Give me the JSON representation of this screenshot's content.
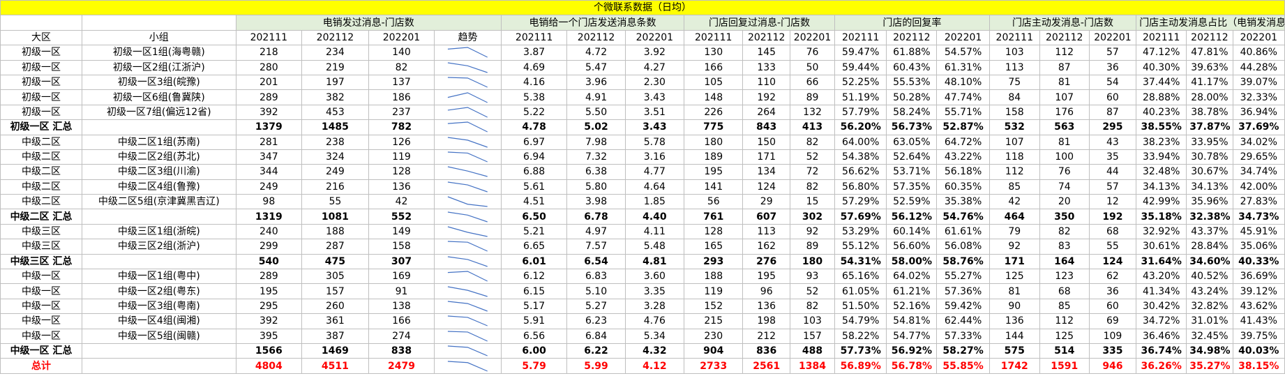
{
  "title": "个微联系数据（日均）",
  "group_headers": {
    "g1": "电销发过消息-门店数",
    "g2": "电销给一个门店发送消息条数",
    "g3": "门店回复过消息-门店数",
    "g4": "门店的回复率",
    "g5": "门店主动发消息-门店数",
    "g6": "门店主动发消息占比（电销发消息）"
  },
  "col_headers": {
    "region": "大区",
    "team": "小组",
    "p1": "202111",
    "p2": "202112",
    "p3": "202201",
    "trend": "趋势"
  },
  "rows": [
    {
      "region": "初级一区",
      "team": "初级一区1组(海粤赣)",
      "s": [
        "218",
        "234",
        "140"
      ],
      "m": [
        "3.87",
        "4.72",
        "3.92"
      ],
      "r": [
        "130",
        "145",
        "76"
      ],
      "rr": [
        "59.47%",
        "61.88%",
        "54.57%"
      ],
      "a": [
        "103",
        "112",
        "57"
      ],
      "ap": [
        "47.12%",
        "47.81%",
        "40.86%"
      ]
    },
    {
      "region": "初级一区",
      "team": "初级一区2组(江浙沪)",
      "s": [
        "280",
        "219",
        "82"
      ],
      "m": [
        "4.69",
        "5.47",
        "4.27"
      ],
      "r": [
        "166",
        "133",
        "50"
      ],
      "rr": [
        "59.44%",
        "60.43%",
        "61.31%"
      ],
      "a": [
        "113",
        "87",
        "36"
      ],
      "ap": [
        "40.30%",
        "39.63%",
        "44.28%"
      ]
    },
    {
      "region": "初级一区",
      "team": "初级一区3组(皖豫)",
      "s": [
        "201",
        "197",
        "137"
      ],
      "m": [
        "4.16",
        "3.96",
        "2.30"
      ],
      "r": [
        "105",
        "110",
        "66"
      ],
      "rr": [
        "52.25%",
        "55.53%",
        "48.10%"
      ],
      "a": [
        "75",
        "81",
        "54"
      ],
      "ap": [
        "37.44%",
        "41.17%",
        "39.07%"
      ]
    },
    {
      "region": "初级一区",
      "team": "初级一区6组(鲁冀陕)",
      "s": [
        "289",
        "382",
        "186"
      ],
      "m": [
        "5.38",
        "4.91",
        "3.43"
      ],
      "r": [
        "148",
        "192",
        "89"
      ],
      "rr": [
        "51.19%",
        "50.28%",
        "47.74%"
      ],
      "a": [
        "84",
        "107",
        "60"
      ],
      "ap": [
        "28.88%",
        "28.00%",
        "32.33%"
      ]
    },
    {
      "region": "初级一区",
      "team": "初级一区7组(偏远12省)",
      "s": [
        "392",
        "453",
        "237"
      ],
      "m": [
        "5.22",
        "5.50",
        "3.51"
      ],
      "r": [
        "226",
        "264",
        "132"
      ],
      "rr": [
        "57.79%",
        "58.24%",
        "55.71%"
      ],
      "a": [
        "158",
        "176",
        "87"
      ],
      "ap": [
        "40.23%",
        "38.78%",
        "36.94%"
      ]
    },
    {
      "type": "subtotal",
      "region": "初级一区 汇总",
      "team": "",
      "s": [
        "1379",
        "1485",
        "782"
      ],
      "m": [
        "4.78",
        "5.02",
        "3.43"
      ],
      "r": [
        "775",
        "843",
        "413"
      ],
      "rr": [
        "56.20%",
        "56.73%",
        "52.87%"
      ],
      "a": [
        "532",
        "563",
        "295"
      ],
      "ap": [
        "38.55%",
        "37.87%",
        "37.69%"
      ]
    },
    {
      "region": "中级二区",
      "team": "中级二区1组(苏南)",
      "s": [
        "281",
        "238",
        "126"
      ],
      "m": [
        "6.97",
        "7.98",
        "5.78"
      ],
      "r": [
        "180",
        "150",
        "82"
      ],
      "rr": [
        "64.00%",
        "63.05%",
        "64.72%"
      ],
      "a": [
        "107",
        "81",
        "43"
      ],
      "ap": [
        "38.23%",
        "33.95%",
        "34.02%"
      ]
    },
    {
      "region": "中级二区",
      "team": "中级二区2组(苏北)",
      "s": [
        "347",
        "324",
        "119"
      ],
      "m": [
        "6.94",
        "7.32",
        "3.16"
      ],
      "r": [
        "189",
        "171",
        "52"
      ],
      "rr": [
        "54.38%",
        "52.64%",
        "43.22%"
      ],
      "a": [
        "118",
        "100",
        "35"
      ],
      "ap": [
        "33.94%",
        "30.78%",
        "29.65%"
      ]
    },
    {
      "region": "中级二区",
      "team": "中级二区3组(川渝)",
      "s": [
        "344",
        "249",
        "128"
      ],
      "m": [
        "6.88",
        "6.38",
        "4.77"
      ],
      "r": [
        "195",
        "134",
        "72"
      ],
      "rr": [
        "56.62%",
        "53.71%",
        "56.18%"
      ],
      "a": [
        "112",
        "76",
        "44"
      ],
      "ap": [
        "32.48%",
        "30.67%",
        "34.74%"
      ]
    },
    {
      "region": "中级二区",
      "team": "中级二区4组(鲁豫)",
      "s": [
        "249",
        "216",
        "136"
      ],
      "m": [
        "5.61",
        "5.80",
        "4.64"
      ],
      "r": [
        "141",
        "124",
        "82"
      ],
      "rr": [
        "56.80%",
        "57.35%",
        "60.35%"
      ],
      "a": [
        "85",
        "74",
        "57"
      ],
      "ap": [
        "34.13%",
        "34.13%",
        "42.00%"
      ]
    },
    {
      "region": "中级二区",
      "team": "中级二区5组(京津冀黑吉辽)",
      "s": [
        "98",
        "55",
        "42"
      ],
      "m": [
        "4.51",
        "3.98",
        "1.85"
      ],
      "r": [
        "56",
        "29",
        "15"
      ],
      "rr": [
        "57.29%",
        "52.59%",
        "35.38%"
      ],
      "a": [
        "42",
        "20",
        "12"
      ],
      "ap": [
        "42.99%",
        "35.96%",
        "27.83%"
      ]
    },
    {
      "type": "subtotal",
      "region": "中级二区 汇总",
      "team": "",
      "s": [
        "1319",
        "1081",
        "552"
      ],
      "m": [
        "6.50",
        "6.78",
        "4.40"
      ],
      "r": [
        "761",
        "607",
        "302"
      ],
      "rr": [
        "57.69%",
        "56.12%",
        "54.76%"
      ],
      "a": [
        "464",
        "350",
        "192"
      ],
      "ap": [
        "35.18%",
        "32.38%",
        "34.73%"
      ]
    },
    {
      "region": "中级三区",
      "team": "中级三区1组(浙皖)",
      "s": [
        "240",
        "188",
        "149"
      ],
      "m": [
        "5.21",
        "4.97",
        "4.11"
      ],
      "r": [
        "128",
        "113",
        "92"
      ],
      "rr": [
        "53.29%",
        "60.14%",
        "61.61%"
      ],
      "a": [
        "79",
        "82",
        "68"
      ],
      "ap": [
        "32.92%",
        "43.37%",
        "45.91%"
      ]
    },
    {
      "region": "中级三区",
      "team": "中级三区2组(浙沪)",
      "s": [
        "299",
        "287",
        "158"
      ],
      "m": [
        "6.65",
        "7.57",
        "5.48"
      ],
      "r": [
        "165",
        "162",
        "89"
      ],
      "rr": [
        "55.12%",
        "56.60%",
        "56.08%"
      ],
      "a": [
        "92",
        "83",
        "55"
      ],
      "ap": [
        "30.61%",
        "28.84%",
        "35.06%"
      ]
    },
    {
      "type": "subtotal",
      "region": "中级三区 汇总",
      "team": "",
      "s": [
        "540",
        "475",
        "307"
      ],
      "m": [
        "6.01",
        "6.54",
        "4.81"
      ],
      "r": [
        "293",
        "276",
        "180"
      ],
      "rr": [
        "54.31%",
        "58.00%",
        "58.76%"
      ],
      "a": [
        "171",
        "164",
        "124"
      ],
      "ap": [
        "31.64%",
        "34.60%",
        "40.33%"
      ]
    },
    {
      "region": "中级一区",
      "team": "中级一区1组(粤中)",
      "s": [
        "289",
        "305",
        "169"
      ],
      "m": [
        "6.12",
        "6.83",
        "3.60"
      ],
      "r": [
        "188",
        "195",
        "93"
      ],
      "rr": [
        "65.16%",
        "64.02%",
        "55.27%"
      ],
      "a": [
        "125",
        "123",
        "62"
      ],
      "ap": [
        "43.20%",
        "40.52%",
        "36.69%"
      ]
    },
    {
      "region": "中级一区",
      "team": "中级一区2组(粤东)",
      "s": [
        "195",
        "157",
        "91"
      ],
      "m": [
        "6.15",
        "5.10",
        "3.35"
      ],
      "r": [
        "119",
        "96",
        "52"
      ],
      "rr": [
        "61.05%",
        "61.21%",
        "57.36%"
      ],
      "a": [
        "81",
        "68",
        "36"
      ],
      "ap": [
        "41.34%",
        "43.24%",
        "39.12%"
      ]
    },
    {
      "region": "中级一区",
      "team": "中级一区3组(粤南)",
      "s": [
        "295",
        "260",
        "138"
      ],
      "m": [
        "5.17",
        "5.27",
        "3.28"
      ],
      "r": [
        "152",
        "136",
        "82"
      ],
      "rr": [
        "51.50%",
        "52.16%",
        "59.42%"
      ],
      "a": [
        "90",
        "85",
        "60"
      ],
      "ap": [
        "30.42%",
        "32.82%",
        "43.62%"
      ]
    },
    {
      "region": "中级一区",
      "team": "中级一区4组(闽湘)",
      "s": [
        "392",
        "361",
        "166"
      ],
      "m": [
        "5.91",
        "6.23",
        "4.76"
      ],
      "r": [
        "215",
        "198",
        "103"
      ],
      "rr": [
        "54.79%",
        "54.81%",
        "62.44%"
      ],
      "a": [
        "136",
        "112",
        "69"
      ],
      "ap": [
        "34.72%",
        "31.01%",
        "41.43%"
      ]
    },
    {
      "region": "中级一区",
      "team": "中级一区5组(闽赣)",
      "s": [
        "395",
        "387",
        "274"
      ],
      "m": [
        "6.56",
        "6.84",
        "5.34"
      ],
      "r": [
        "230",
        "212",
        "157"
      ],
      "rr": [
        "58.22%",
        "54.77%",
        "57.33%"
      ],
      "a": [
        "144",
        "125",
        "109"
      ],
      "ap": [
        "36.46%",
        "32.45%",
        "39.75%"
      ]
    },
    {
      "type": "subtotal",
      "region": "中级一区 汇总",
      "team": "",
      "s": [
        "1566",
        "1469",
        "838"
      ],
      "m": [
        "6.00",
        "6.22",
        "4.32"
      ],
      "r": [
        "904",
        "836",
        "488"
      ],
      "rr": [
        "57.73%",
        "56.92%",
        "58.27%"
      ],
      "a": [
        "575",
        "514",
        "335"
      ],
      "ap": [
        "36.74%",
        "34.98%",
        "40.03%"
      ]
    },
    {
      "type": "total",
      "region": "总计",
      "team": "",
      "s": [
        "4804",
        "4511",
        "2479"
      ],
      "m": [
        "5.79",
        "5.99",
        "4.12"
      ],
      "r": [
        "2733",
        "2561",
        "1384"
      ],
      "rr": [
        "56.89%",
        "56.78%",
        "55.85%"
      ],
      "a": [
        "1742",
        "1591",
        "946"
      ],
      "ap": [
        "36.26%",
        "35.27%",
        "38.15%"
      ]
    }
  ],
  "colors": {
    "title_bg": "#ffff00",
    "group_header_bg": "#e2efda",
    "total_text": "#ff0000",
    "sparkline": "#4472c4",
    "grid": "#bfbfbf"
  }
}
